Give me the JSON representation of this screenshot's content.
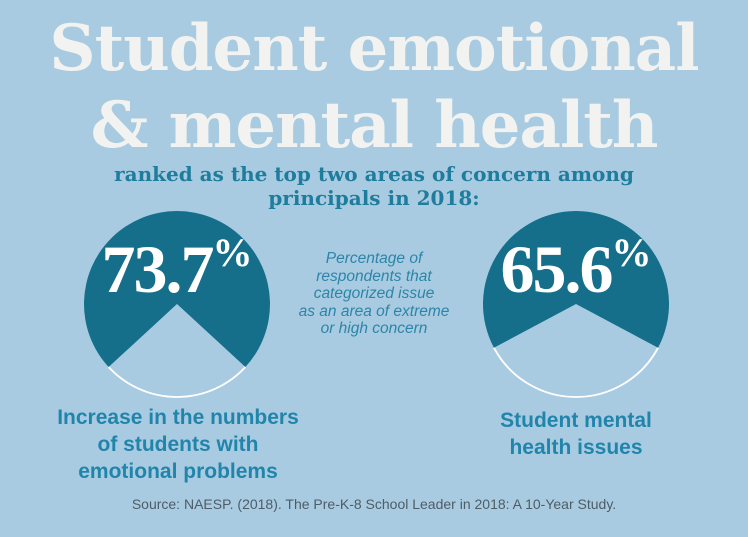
{
  "colors": {
    "background": "#a9cbe1",
    "pie_fill": "#156f8b",
    "pie_cut_fill": "#a9cbe1",
    "pie_arc_stroke": "#ffffff",
    "title_text": "#f2f3f0",
    "subtitle_text": "#1e7c9c",
    "caption_text": "#2185ab",
    "note_text": "#2c85a8",
    "value_text": "#ffffff",
    "source_text": "#4e5c66"
  },
  "header": {
    "title_line1": "Student emotional",
    "title_line2": "& mental health",
    "subtitle": "ranked as the top two areas of concern among\nprincipals in 2018:"
  },
  "center_note": "Percentage of\nrespondents that\ncategorized issue\nas an area of extreme\nor high concern",
  "source_line": "Source: NAESP. (2018). The Pre-K-8 School Leader in 2018: A 10-Year Study.",
  "chart_data": [
    {
      "type": "pie",
      "title": "Increase in the numbers of students with emotional problems",
      "display_value": "73.7",
      "unit": "%",
      "value": 73.7,
      "segments": [
        {
          "label": "area of extreme or high concern",
          "value": 73.7
        },
        {
          "label": "remainder (open bottom wedge)",
          "value": 26.3
        }
      ],
      "caption": "Increase in the numbers\nof students with\nemotional problems"
    },
    {
      "type": "pie",
      "title": "Student mental health issues",
      "display_value": "65.6",
      "unit": "%",
      "value": 65.6,
      "segments": [
        {
          "label": "area of extreme or high concern",
          "value": 65.6
        },
        {
          "label": "remainder (open bottom wedge)",
          "value": 34.4
        }
      ],
      "caption": "Student mental\nhealth issues"
    }
  ]
}
